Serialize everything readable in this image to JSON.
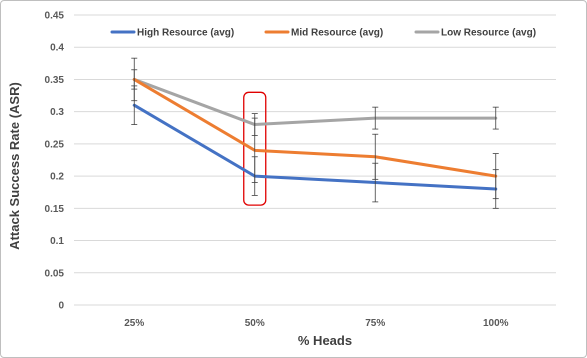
{
  "chart_data": {
    "type": "line",
    "title": "",
    "categories": [
      "25%",
      "50%",
      "75%",
      "100%"
    ],
    "xlabel": "% Heads",
    "ylabel": "Attack Success Rate (ASR)",
    "ylim": [
      0,
      0.45
    ],
    "yticks": [
      "0",
      "0.05",
      "0.1",
      "0.15",
      "0.2",
      "0.25",
      "0.3",
      "0.35",
      "0.4",
      "0.45"
    ],
    "grid": "horizontal",
    "legend_position": "top",
    "series": [
      {
        "name": "High Resource (avg)",
        "color": "#4472C4",
        "values": [
          0.31,
          0.2,
          0.19,
          0.18
        ],
        "error": [
          0.03,
          0.03,
          0.03,
          0.03
        ]
      },
      {
        "name": "Mid Resource (avg)",
        "color": "#ED7D31",
        "values": [
          0.35,
          0.24,
          0.23,
          0.2
        ],
        "error": [
          0.015,
          0.05,
          0.035,
          0.035
        ]
      },
      {
        "name": "Low Resource (avg)",
        "color": "#A5A5A5",
        "values": [
          0.35,
          0.28,
          0.29,
          0.29
        ],
        "error": [
          0.033,
          0.017,
          0.017,
          0.017
        ]
      }
    ],
    "highlight": {
      "category": "50%",
      "color": "#E00000"
    }
  }
}
